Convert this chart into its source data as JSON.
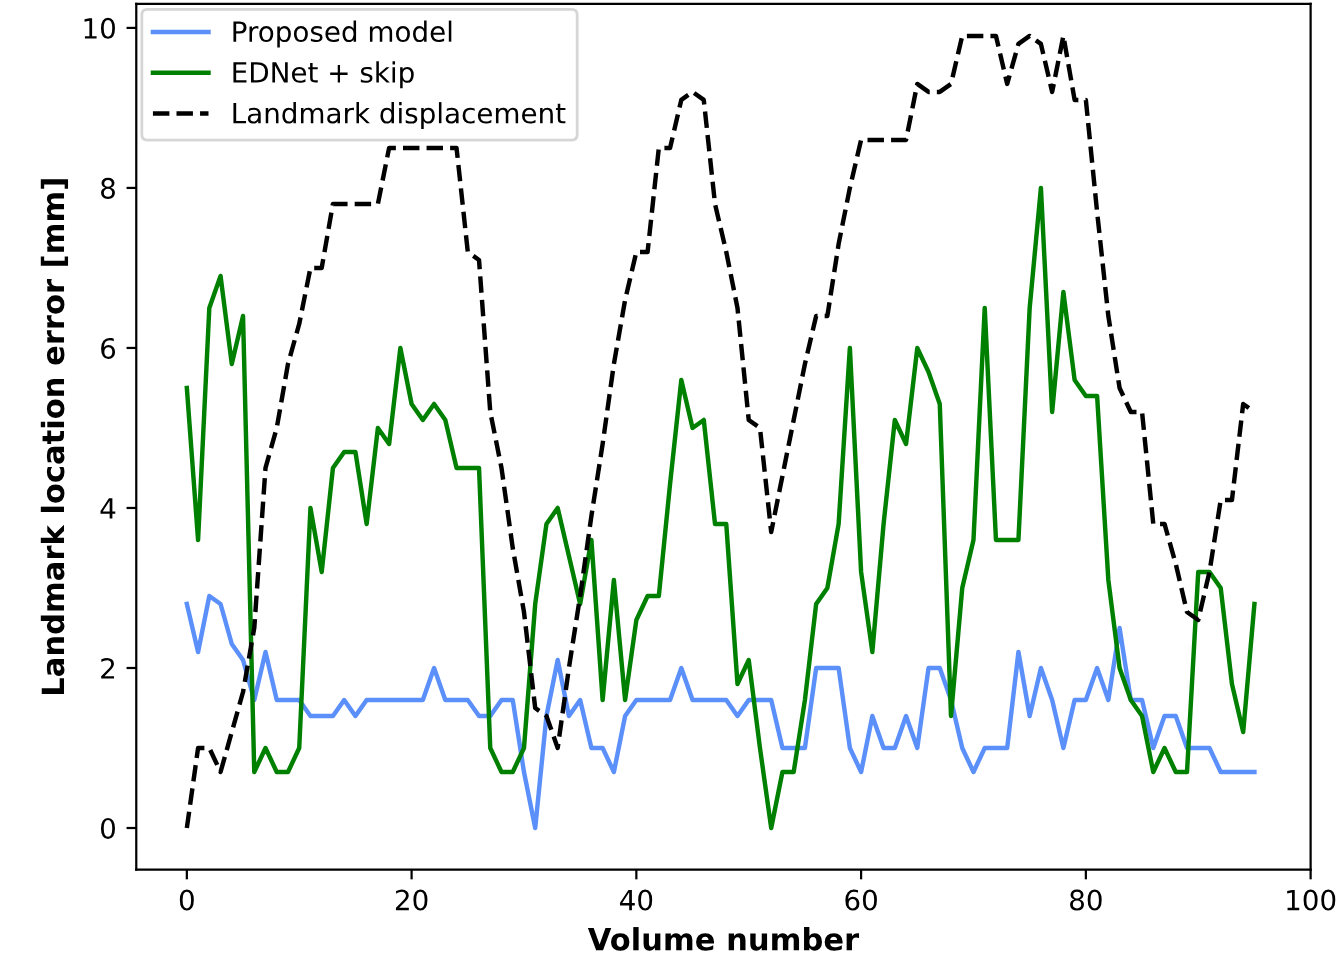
{
  "chart_data": {
    "type": "line",
    "xlabel": "Volume number",
    "ylabel": "Landmark location error [mm]",
    "x": [
      0,
      1,
      2,
      3,
      4,
      5,
      6,
      7,
      8,
      9,
      10,
      11,
      12,
      13,
      14,
      15,
      16,
      17,
      18,
      19,
      20,
      21,
      22,
      23,
      24,
      25,
      26,
      27,
      28,
      29,
      30,
      31,
      32,
      33,
      34,
      35,
      36,
      37,
      38,
      39,
      40,
      41,
      42,
      43,
      44,
      45,
      46,
      47,
      48,
      49,
      50,
      51,
      52,
      53,
      54,
      55,
      56,
      57,
      58,
      59,
      60,
      61,
      62,
      63,
      64,
      65,
      66,
      67,
      68,
      69,
      70,
      71,
      72,
      73,
      74,
      75,
      76,
      77,
      78,
      79,
      80,
      81,
      82,
      83,
      84,
      85,
      86,
      87,
      88,
      89,
      90,
      91,
      92,
      93,
      94,
      95
    ],
    "series": [
      {
        "name": "Proposed model",
        "color": "#5b8ff9",
        "line_style": "solid",
        "values": [
          2.8,
          2.2,
          2.9,
          2.8,
          2.3,
          2.1,
          1.6,
          2.2,
          1.6,
          1.6,
          1.6,
          1.4,
          1.4,
          1.4,
          1.6,
          1.4,
          1.6,
          1.6,
          1.6,
          1.6,
          1.6,
          1.6,
          2.0,
          1.6,
          1.6,
          1.6,
          1.4,
          1.4,
          1.6,
          1.6,
          0.7,
          0.0,
          1.4,
          2.1,
          1.4,
          1.6,
          1.0,
          1.0,
          0.7,
          1.4,
          1.6,
          1.6,
          1.6,
          1.6,
          2.0,
          1.6,
          1.6,
          1.6,
          1.6,
          1.4,
          1.6,
          1.6,
          1.6,
          1.0,
          1.0,
          1.0,
          2.0,
          2.0,
          2.0,
          1.0,
          0.7,
          1.4,
          1.0,
          1.0,
          1.4,
          1.0,
          2.0,
          2.0,
          1.6,
          1.0,
          0.7,
          1.0,
          1.0,
          1.0,
          2.2,
          1.4,
          2.0,
          1.6,
          1.0,
          1.6,
          1.6,
          2.0,
          1.6,
          2.5,
          1.6,
          1.6,
          1.0,
          1.4,
          1.4,
          1.0,
          1.0,
          1.0,
          0.7,
          0.7,
          0.7,
          0.7
        ]
      },
      {
        "name": "EDNet + skip",
        "color": "#008000",
        "line_style": "solid",
        "values": [
          5.5,
          3.6,
          6.5,
          6.9,
          5.8,
          6.4,
          0.7,
          1.0,
          0.7,
          0.7,
          1.0,
          4.0,
          3.2,
          4.5,
          4.7,
          4.7,
          3.8,
          5.0,
          4.8,
          6.0,
          5.3,
          5.1,
          5.3,
          5.1,
          4.5,
          4.5,
          4.5,
          1.0,
          0.7,
          0.7,
          1.0,
          2.8,
          3.8,
          4.0,
          3.4,
          2.8,
          3.6,
          1.6,
          3.1,
          1.6,
          2.6,
          2.9,
          2.9,
          4.3,
          5.6,
          5.0,
          5.1,
          3.8,
          3.8,
          1.8,
          2.1,
          1.0,
          0.0,
          0.7,
          0.7,
          1.6,
          2.8,
          3.0,
          3.8,
          6.0,
          3.2,
          2.2,
          3.8,
          5.1,
          4.8,
          6.0,
          5.7,
          5.3,
          1.4,
          3.0,
          3.6,
          6.5,
          3.6,
          3.6,
          3.6,
          6.5,
          8.0,
          5.2,
          6.7,
          5.6,
          5.4,
          5.4,
          3.1,
          2.0,
          1.6,
          1.4,
          0.7,
          1.0,
          0.7,
          0.7,
          3.2,
          3.2,
          3.0,
          1.8,
          1.2,
          2.8
        ]
      },
      {
        "name": "Landmark displacement",
        "color": "#000000",
        "line_style": "dashed",
        "values": [
          0.0,
          1.0,
          1.0,
          0.7,
          1.2,
          1.7,
          2.5,
          4.5,
          5.0,
          5.8,
          6.3,
          7.0,
          7.0,
          7.8,
          7.8,
          7.8,
          7.8,
          7.8,
          8.5,
          8.5,
          8.5,
          8.5,
          8.5,
          8.5,
          8.5,
          7.2,
          7.1,
          5.2,
          4.5,
          3.5,
          2.7,
          1.5,
          1.4,
          1.0,
          2.0,
          2.9,
          3.9,
          4.8,
          5.8,
          6.6,
          7.2,
          7.2,
          8.5,
          8.5,
          9.1,
          9.2,
          9.1,
          7.8,
          7.2,
          6.5,
          5.1,
          5.0,
          3.7,
          4.4,
          5.1,
          5.8,
          6.4,
          6.4,
          7.3,
          8.0,
          8.6,
          8.6,
          8.6,
          8.6,
          8.6,
          9.3,
          9.2,
          9.2,
          9.3,
          9.9,
          9.9,
          9.9,
          9.9,
          9.3,
          9.8,
          9.9,
          9.8,
          9.2,
          9.9,
          9.1,
          9.1,
          7.7,
          6.4,
          5.5,
          5.2,
          5.2,
          3.8,
          3.8,
          3.3,
          2.7,
          2.6,
          3.2,
          4.1,
          4.1,
          5.3,
          5.2
        ]
      }
    ],
    "xlim": [
      -4.5,
      100
    ],
    "ylim": [
      -0.52,
      10.3
    ],
    "xticks": [
      0,
      20,
      40,
      60,
      80,
      100
    ],
    "yticks": [
      0,
      2,
      4,
      6,
      8,
      10
    ],
    "grid": false,
    "legend": "top left",
    "marker": "none"
  }
}
